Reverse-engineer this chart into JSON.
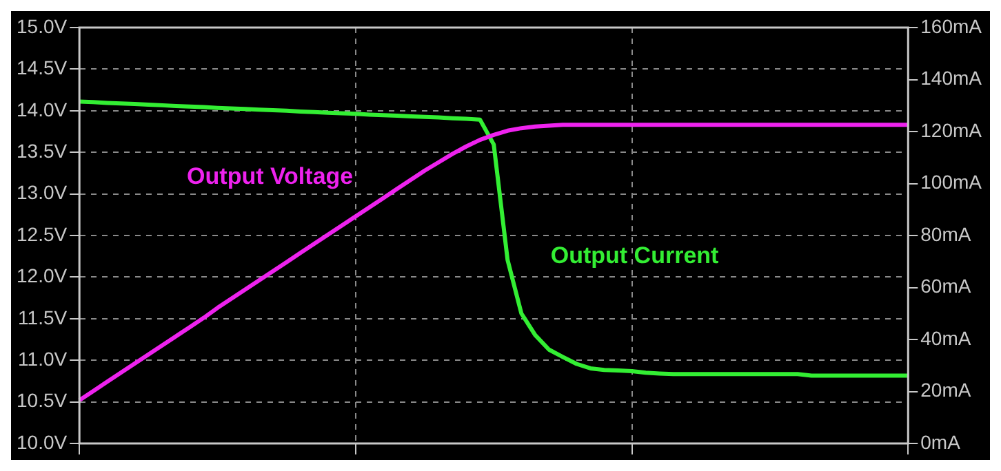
{
  "chart_data": {
    "type": "line",
    "categories": [
      null,
      null,
      null,
      null,
      null,
      null,
      null,
      null,
      null,
      null,
      null,
      null,
      null,
      null,
      null,
      null,
      null,
      null,
      null,
      null,
      null,
      null,
      null,
      null,
      null,
      null,
      null,
      null,
      null,
      null,
      null,
      null,
      null,
      null,
      null,
      null,
      null,
      null,
      null,
      null,
      null,
      null,
      null,
      null,
      null,
      null,
      null,
      null,
      null,
      null,
      null,
      null,
      null,
      null,
      null,
      null,
      null,
      null,
      null,
      null,
      null
    ],
    "series": [
      {
        "name": "Output Voltage",
        "color": "#ee22ee",
        "values": [
          10.52,
          10.63,
          10.74,
          10.85,
          10.96,
          11.07,
          11.18,
          11.29,
          11.4,
          11.51,
          11.63,
          11.74,
          11.85,
          11.96,
          12.07,
          12.18,
          12.29,
          12.4,
          12.51,
          12.62,
          12.73,
          12.84,
          12.95,
          13.06,
          13.17,
          13.28,
          13.38,
          13.48,
          13.57,
          13.65,
          13.71,
          13.76,
          13.79,
          13.81,
          13.82,
          13.83,
          13.83,
          13.83,
          13.83,
          13.83,
          13.83,
          13.83,
          13.83,
          13.83,
          13.83,
          13.83,
          13.83,
          13.83,
          13.83,
          13.83,
          13.83,
          13.83,
          13.83,
          13.83,
          13.83,
          13.83,
          13.83,
          13.83,
          13.83,
          13.83,
          13.83
        ]
      },
      {
        "name": "Output Current",
        "color": "#33ee33",
        "axis": "y2",
        "values": [
          131.5,
          131.3,
          131.0,
          130.8,
          130.6,
          130.3,
          130.1,
          129.8,
          129.6,
          129.4,
          129.1,
          128.9,
          128.7,
          128.4,
          128.2,
          128.0,
          127.7,
          127.5,
          127.2,
          127.0,
          126.8,
          126.5,
          126.3,
          126.1,
          125.8,
          125.6,
          125.4,
          125.1,
          124.9,
          124.6,
          115.0,
          70.6,
          50.0,
          41.7,
          36.1,
          33.3,
          30.6,
          28.9,
          28.3,
          28.1,
          27.8,
          27.2,
          26.9,
          26.7,
          26.7,
          26.7,
          26.7,
          26.7,
          26.7,
          26.7,
          26.7,
          26.7,
          26.7,
          26.1,
          26.1,
          26.1,
          26.1,
          26.1,
          26.1,
          26.1,
          26.1
        ]
      }
    ],
    "ylim": [
      10,
      15
    ],
    "yticks": [
      {
        "value": 10,
        "label": "10.0V"
      },
      {
        "value": 10.5,
        "label": "10.5V"
      },
      {
        "value": 11,
        "label": "11.0V"
      },
      {
        "value": 11.5,
        "label": "11.5V"
      },
      {
        "value": 12,
        "label": "12.0V"
      },
      {
        "value": 12.5,
        "label": "12.5V"
      },
      {
        "value": 13,
        "label": "13.0V"
      },
      {
        "value": 13.5,
        "label": "13.5V"
      },
      {
        "value": 14,
        "label": "14.0V"
      },
      {
        "value": 14.5,
        "label": "14.5V"
      },
      {
        "value": 15,
        "label": "15.0V"
      }
    ],
    "y2lim": [
      0,
      160
    ],
    "y2ticks": [
      {
        "value": 0,
        "label": "0mA"
      },
      {
        "value": 20,
        "label": "20mA"
      },
      {
        "value": 40,
        "label": "40mA"
      },
      {
        "value": 60,
        "label": "60mA"
      },
      {
        "value": 80,
        "label": "80mA"
      },
      {
        "value": 100,
        "label": "100mA"
      },
      {
        "value": 120,
        "label": "120mA"
      },
      {
        "value": 140,
        "label": "140mA"
      },
      {
        "value": 160,
        "label": "160mA"
      }
    ],
    "grid": true,
    "legend": false,
    "tick_labels": "y",
    "marker": "none",
    "line_style": "solid"
  }
}
